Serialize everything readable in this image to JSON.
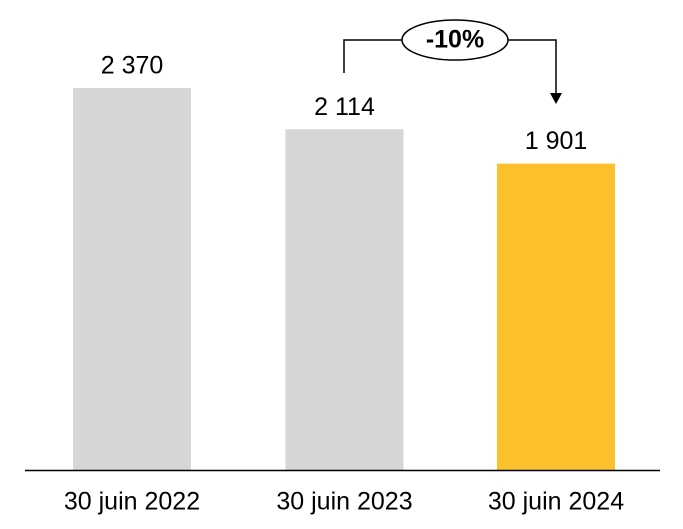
{
  "chart_data": {
    "type": "bar",
    "categories": [
      "30 juin 2022",
      "30 juin 2023",
      "30 juin 2024"
    ],
    "values": [
      2370,
      2114,
      1901
    ],
    "value_labels": [
      "2 370",
      "2 114",
      "1 901"
    ],
    "colors": [
      "#d6d6d6",
      "#d6d6d6",
      "#fcc12d"
    ],
    "annotation": "-10%"
  }
}
